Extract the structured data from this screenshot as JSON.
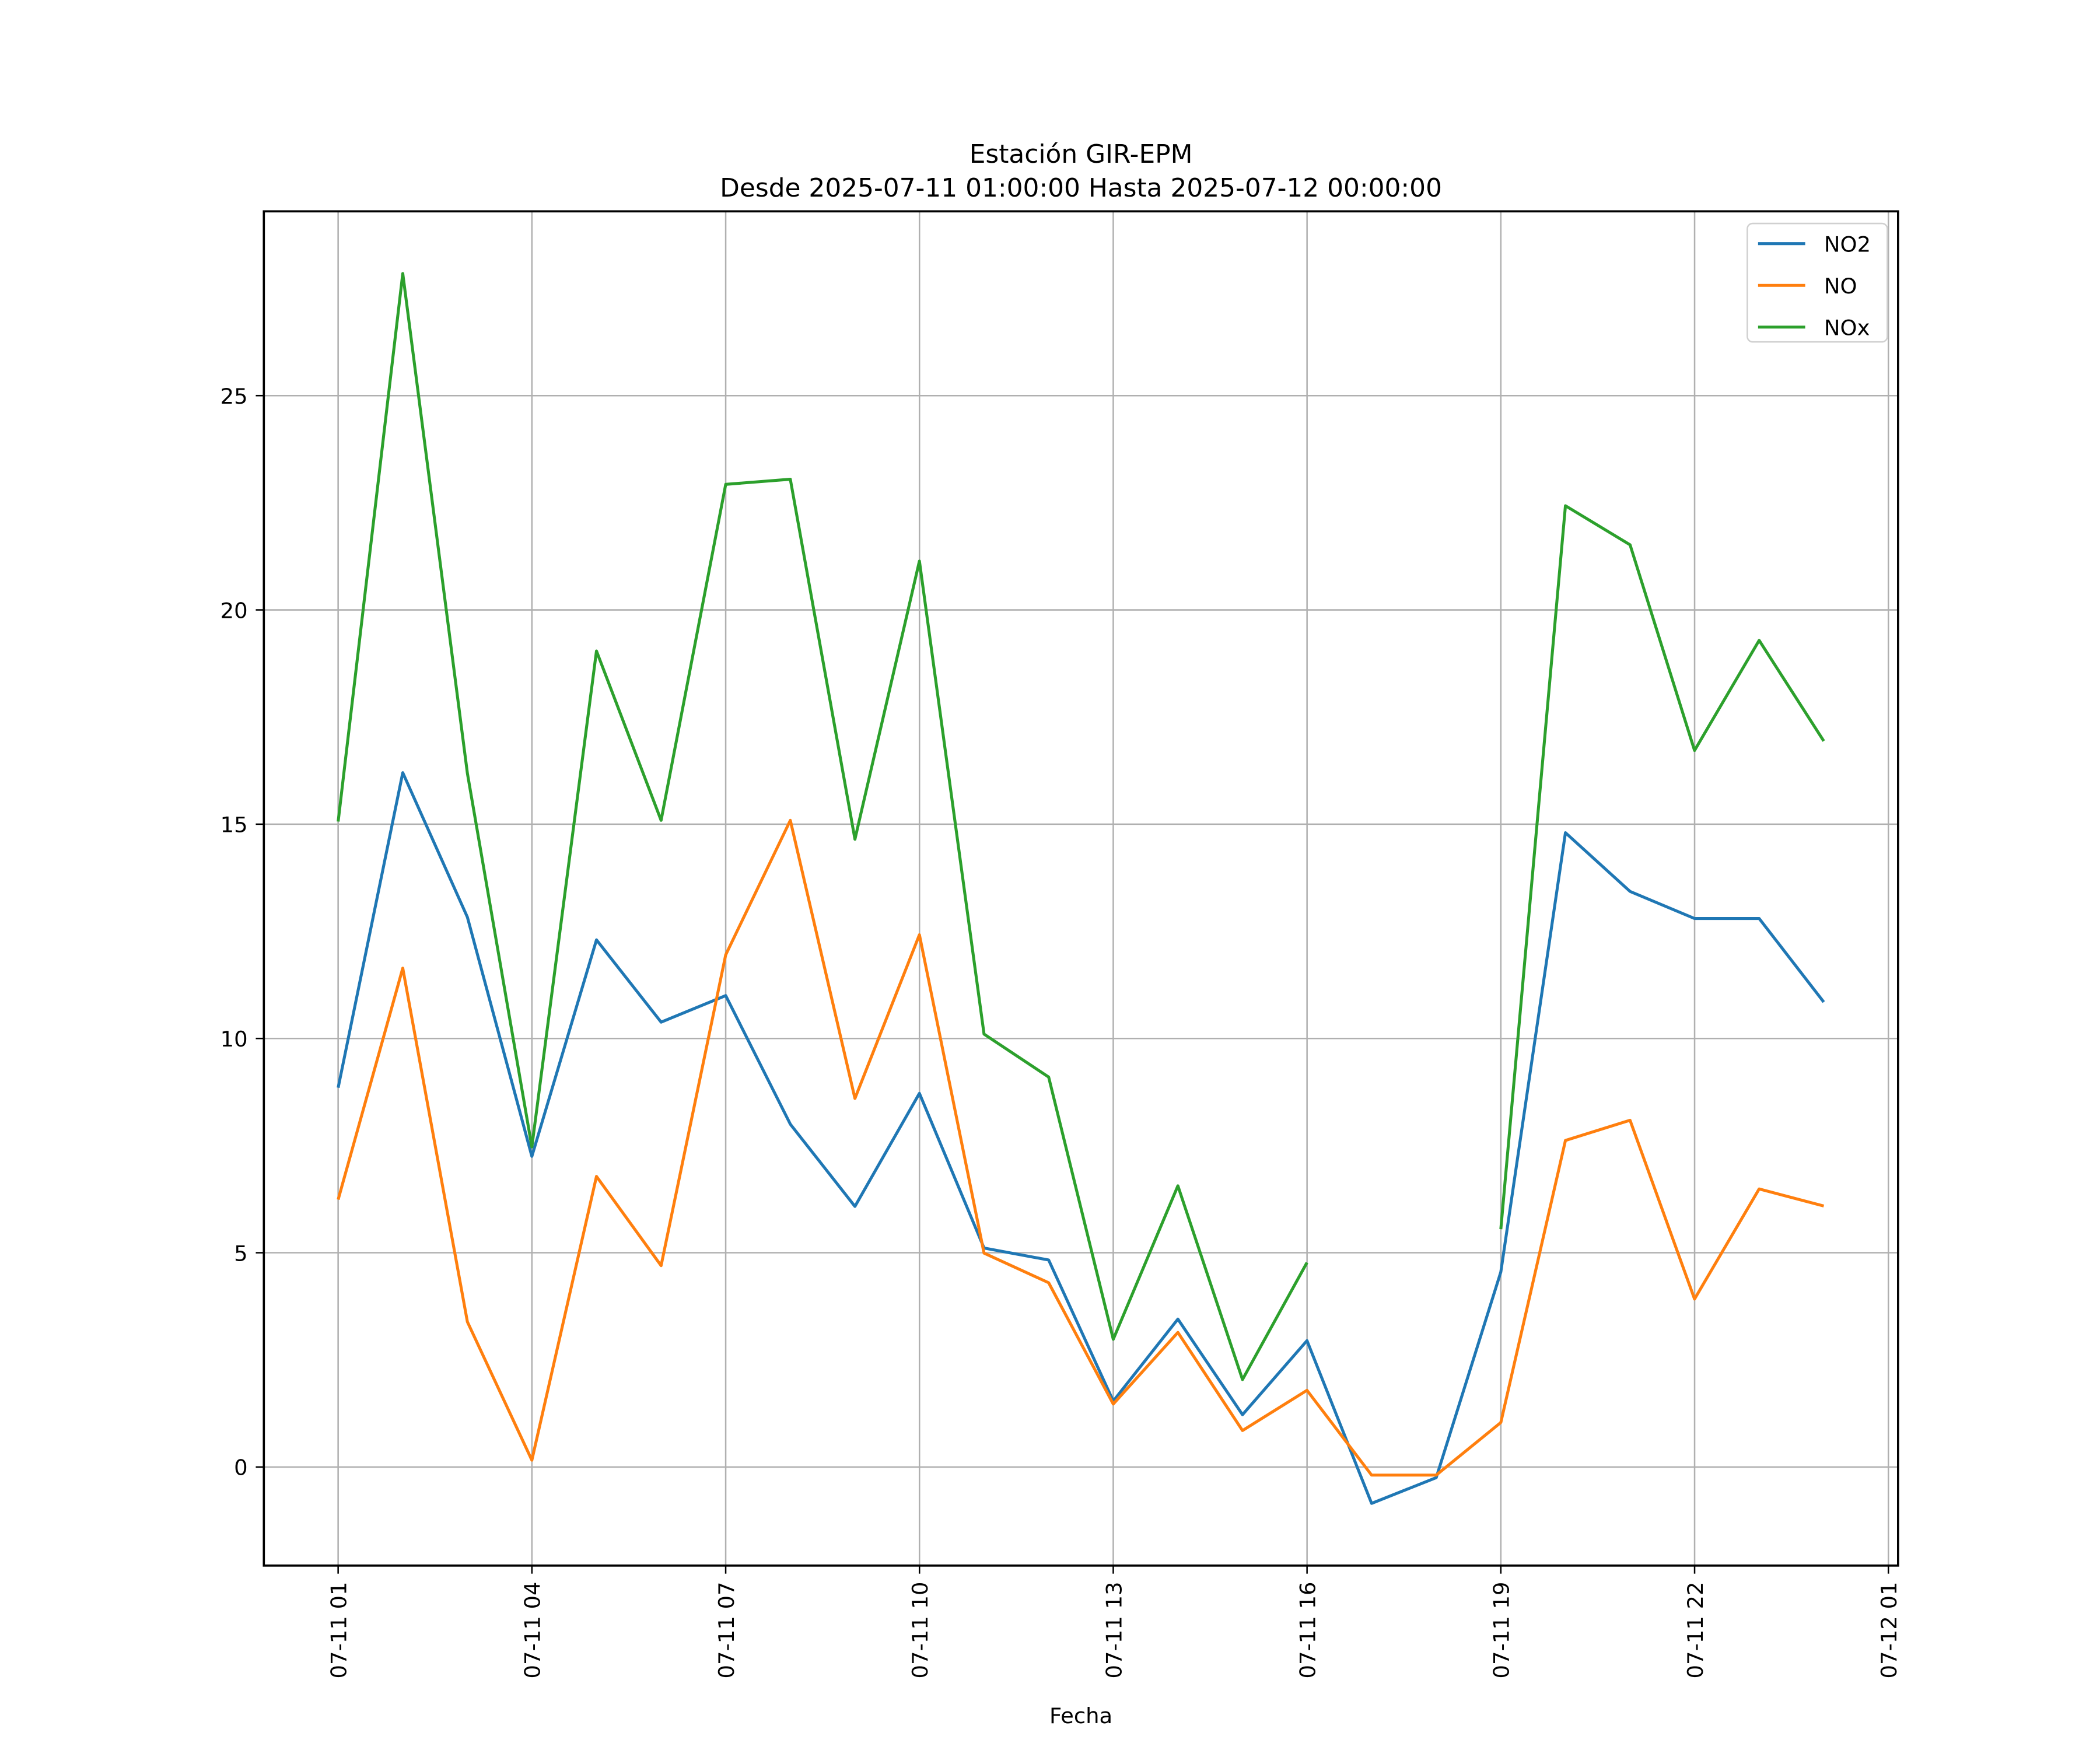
{
  "chart_data": {
    "type": "line",
    "title": "Estación GIR-EPM",
    "subtitle": "Desde 2025-07-11 01:00:00 Hasta 2025-07-12 00:00:00",
    "xlabel": "Fecha",
    "ylabel": "",
    "x_hours": [
      1,
      2,
      3,
      4,
      5,
      6,
      7,
      8,
      9,
      10,
      11,
      12,
      13,
      14,
      15,
      16,
      17,
      18,
      19,
      20,
      21,
      22,
      23,
      24
    ],
    "xlim_hours": [
      -0.15,
      25.15
    ],
    "ylim": [
      -2.3,
      29.3
    ],
    "xticks": [
      {
        "hour": 1,
        "label": "07-11 01"
      },
      {
        "hour": 4,
        "label": "07-11 04"
      },
      {
        "hour": 7,
        "label": "07-11 07"
      },
      {
        "hour": 10,
        "label": "07-11 10"
      },
      {
        "hour": 13,
        "label": "07-11 13"
      },
      {
        "hour": 16,
        "label": "07-11 16"
      },
      {
        "hour": 19,
        "label": "07-11 19"
      },
      {
        "hour": 22,
        "label": "07-11 22"
      },
      {
        "hour": 25,
        "label": "07-12 01"
      }
    ],
    "yticks": [
      {
        "value": 0,
        "label": "0"
      },
      {
        "value": 5,
        "label": "5"
      },
      {
        "value": 10,
        "label": "10"
      },
      {
        "value": 15,
        "label": "15"
      },
      {
        "value": 20,
        "label": "20"
      },
      {
        "value": 25,
        "label": "25"
      }
    ],
    "grid": true,
    "legend_position": "top-right",
    "series": [
      {
        "name": "NO2",
        "color": "#1f77b4",
        "values": [
          8.85,
          16.2,
          12.83,
          7.25,
          12.3,
          10.38,
          11.0,
          8.0,
          6.08,
          8.72,
          5.11,
          4.83,
          1.54,
          3.45,
          1.22,
          2.95,
          -0.85,
          -0.25,
          4.55,
          14.8,
          13.43,
          12.8,
          12.8,
          10.85
        ]
      },
      {
        "name": "NO",
        "color": "#ff7f0e",
        "values": [
          6.24,
          11.64,
          3.39,
          0.16,
          6.78,
          4.7,
          11.95,
          15.09,
          8.6,
          12.42,
          4.99,
          4.3,
          1.47,
          3.14,
          0.85,
          1.79,
          -0.19,
          -0.19,
          1.04,
          7.62,
          8.09,
          3.92,
          6.49,
          6.09
        ]
      },
      {
        "name": "NOx",
        "color": "#2ca02c",
        "values": [
          15.06,
          27.85,
          16.19,
          7.47,
          19.04,
          15.09,
          22.93,
          23.05,
          14.65,
          21.14,
          10.1,
          9.1,
          2.98,
          6.56,
          2.04,
          4.77,
          null,
          null,
          5.55,
          22.43,
          21.52,
          16.72,
          19.29,
          16.94
        ]
      }
    ]
  }
}
